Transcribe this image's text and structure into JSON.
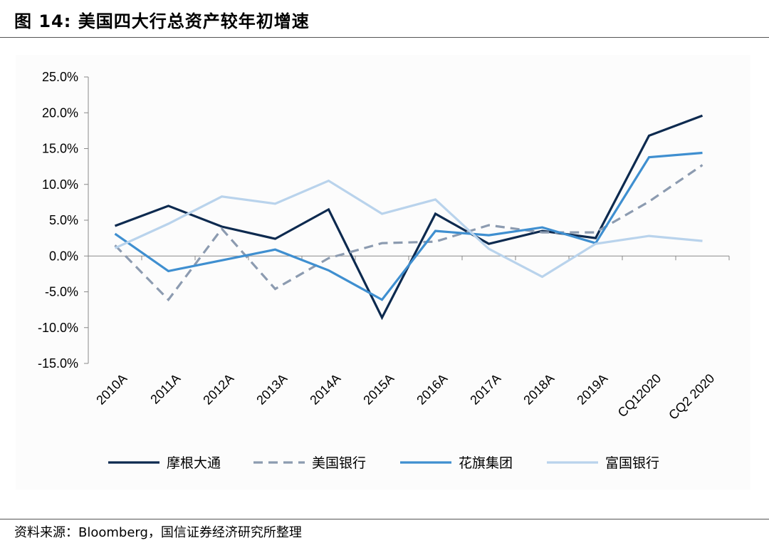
{
  "figure": {
    "title": "图 14:  美国四大行总资产较年初增速",
    "source": "资料来源：Bloomberg，国信证券经济研究所整理"
  },
  "chart_data": {
    "type": "line",
    "title": "",
    "xlabel": "",
    "ylabel": "",
    "ylim": [
      -15,
      25
    ],
    "yticks": [
      "25.0%",
      "20.0%",
      "15.0%",
      "10.0%",
      "5.0%",
      "0.0%",
      "-5.0%",
      "-10.0%",
      "-15.0%"
    ],
    "categories": [
      "2010A",
      "2011A",
      "2012A",
      "2013A",
      "2014A",
      "2015A",
      "2016A",
      "2017A",
      "2018A",
      "2019A",
      "CQ12020",
      "CQ2 2020"
    ],
    "legend_position": "bottom",
    "grid": false,
    "series": [
      {
        "name": "摩根大通",
        "color": "#0d2a4f",
        "dash": "solid",
        "values": [
          4.2,
          7.0,
          4.1,
          2.4,
          6.5,
          -8.6,
          5.9,
          1.7,
          3.5,
          2.5,
          16.8,
          19.6
        ]
      },
      {
        "name": "美国银行",
        "color": "#8c9bb0",
        "dash": "dashed",
        "values": [
          1.5,
          -6.1,
          3.8,
          -4.6,
          -0.3,
          1.8,
          2.0,
          4.3,
          3.3,
          3.3,
          7.6,
          12.7
        ]
      },
      {
        "name": "花旗集团",
        "color": "#3f8fd0",
        "dash": "solid",
        "values": [
          3.1,
          -2.1,
          -0.6,
          0.9,
          -2.0,
          -6.1,
          3.5,
          2.9,
          4.0,
          1.8,
          13.8,
          14.4
        ]
      },
      {
        "name": "富国银行",
        "color": "#b9d3ec",
        "dash": "solid",
        "values": [
          1.1,
          4.5,
          8.3,
          7.3,
          10.5,
          5.9,
          7.9,
          1.0,
          -2.9,
          1.7,
          2.8,
          2.1
        ]
      }
    ]
  }
}
